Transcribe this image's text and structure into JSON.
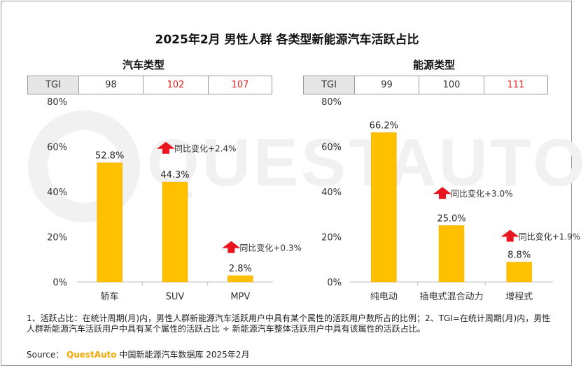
{
  "title": "2025年2月 男性人群 各类型新能源汽车活跃占比",
  "watermark": "QUESTAUTO",
  "colors": {
    "bar": "#ffc000",
    "bar_edge": "#f5a800",
    "arrow": "#e8141e",
    "red_text": "#e02020",
    "axis_text": "#333333"
  },
  "chart_data": [
    {
      "type": "bar",
      "title": "汽车类型",
      "categories": [
        "轿车",
        "SUV",
        "MPV"
      ],
      "values": [
        52.8,
        44.3,
        2.8
      ],
      "value_labels": [
        "52.8%",
        "44.3%",
        "2.8%"
      ],
      "ylim": [
        0,
        80
      ],
      "yticks": [
        "0%",
        "20%",
        "40%",
        "60%",
        "80%"
      ],
      "tgi": {
        "label": "TGI",
        "values": [
          "98",
          "102",
          "107"
        ],
        "highlight": [
          false,
          true,
          true
        ]
      },
      "annotations": [
        {
          "category": "SUV",
          "text": "同比变化+2.4%",
          "arrow": "up",
          "at_value": 59
        },
        {
          "category": "MPV",
          "text": "同比变化+0.3%",
          "arrow": "up",
          "at_value": 15
        }
      ]
    },
    {
      "type": "bar",
      "title": "能源类型",
      "categories": [
        "纯电动",
        "插电式混合动力",
        "增程式"
      ],
      "values": [
        66.2,
        25.0,
        8.8
      ],
      "value_labels": [
        "66.2%",
        "25.0%",
        "8.8%"
      ],
      "ylim": [
        0,
        80
      ],
      "yticks": [
        "0%",
        "20%",
        "40%",
        "60%",
        "80%"
      ],
      "tgi": {
        "label": "TGI",
        "values": [
          "99",
          "100",
          "111"
        ],
        "highlight": [
          false,
          false,
          true
        ]
      },
      "annotations": [
        {
          "category": "插电式混合动力",
          "text": "同比变化+3.0%",
          "arrow": "up",
          "at_value": 39
        },
        {
          "category": "增程式",
          "text": "同比变化+1.9%",
          "arrow": "up",
          "at_value": 20
        }
      ]
    }
  ],
  "notes": "1、活跃占比：在统计周期(月)内，男性人群新能源汽车活跃用户中具有某个属性的活跃用户数所占的比例；2、TGI=在统计周期(月)内，男性人群新能源汽车活跃用户中具有某个属性的活跃占比 ÷ 新能源汽车整体活跃用户中具有该属性的活跃占比。",
  "source": {
    "prefix": "Source：",
    "brand": "QuestAuto",
    "suffix": "中国新能源汽车数据库 2025年2月"
  }
}
